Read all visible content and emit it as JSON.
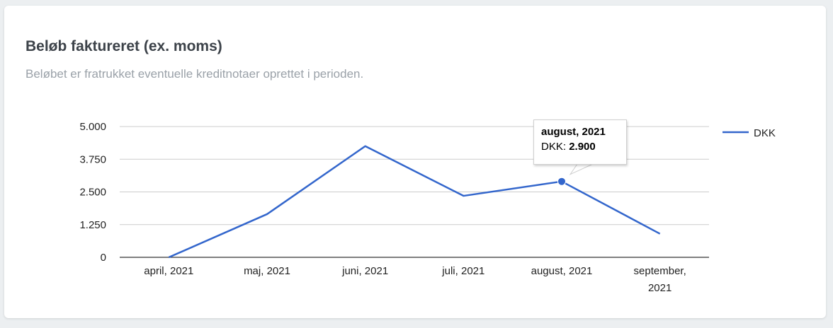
{
  "card": {
    "title": "Beløb faktureret (ex. moms)",
    "subtitle": "Beløbet er fratrukket eventuelle kreditnotaer oprettet i perioden."
  },
  "chart_data": {
    "type": "line",
    "categories": [
      "april, 2021",
      "maj, 2021",
      "juni, 2021",
      "juli, 2021",
      "august, 2021",
      "september, 2021"
    ],
    "series": [
      {
        "name": "DKK",
        "values": [
          0,
          1650,
          4250,
          2350,
          2900,
          900
        ],
        "color": "#3366cc"
      }
    ],
    "ylim": [
      0,
      5000
    ],
    "yticks": [
      "0",
      "1.250",
      "2.500",
      "3.750",
      "5.000"
    ],
    "grid": true,
    "legend": "right"
  },
  "tooltip": {
    "title": "august, 2021",
    "series_label": "DKK:",
    "value": "2.900"
  }
}
